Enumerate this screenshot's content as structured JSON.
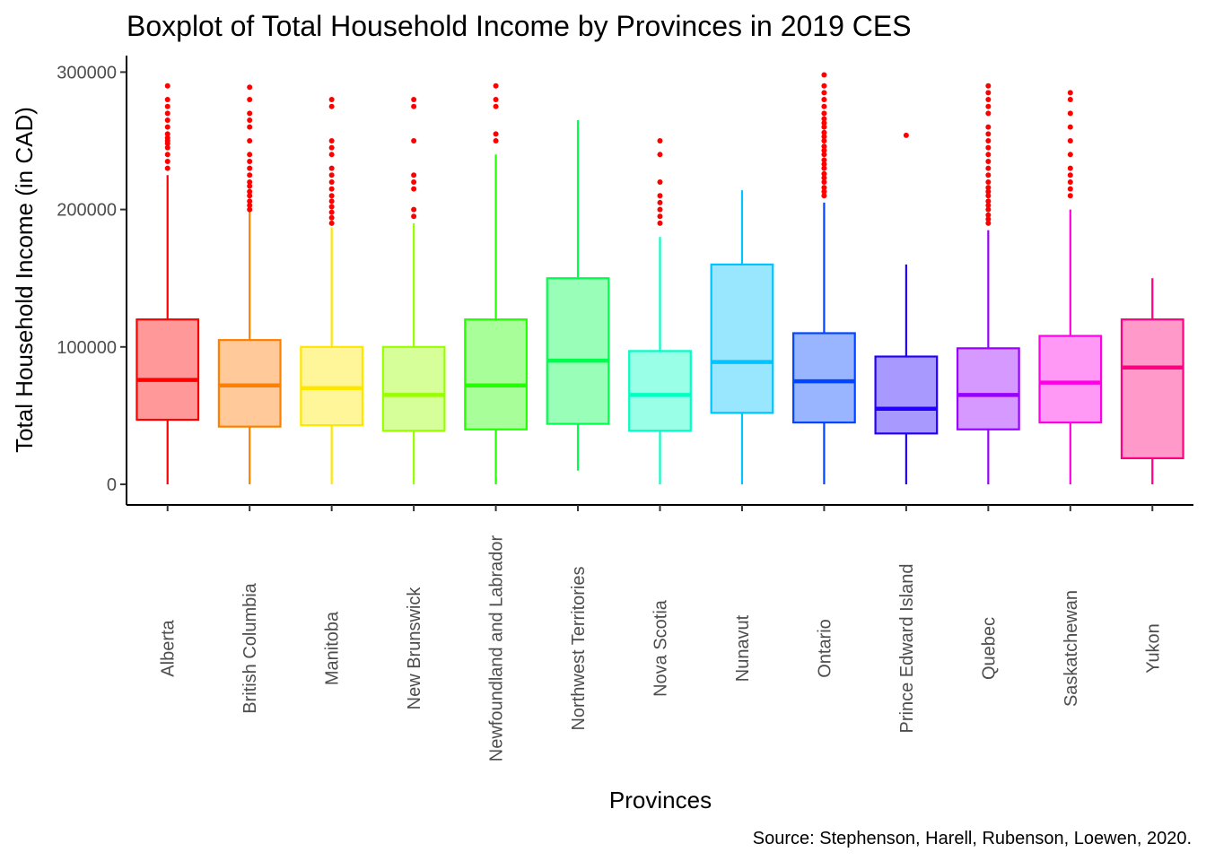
{
  "chart_data": {
    "type": "boxplot",
    "title": "Boxplot of Total Household Income by Provinces in 2019 CES",
    "xlabel": "Provinces",
    "ylabel": "Total Household Income (in CAD)",
    "caption": "Source: Stephenson, Harell, Rubenson, Loewen, 2020.",
    "ylim": [
      -15000,
      312000
    ],
    "y_ticks": [
      0,
      100000,
      200000,
      300000
    ],
    "y_tick_labels": [
      "0",
      "100000",
      "200000",
      "300000"
    ],
    "grid": false,
    "legend": "none",
    "categories": [
      "Alberta",
      "British Columbia",
      "Manitoba",
      "New Brunswick",
      "Newfoundland and Labrador",
      "Northwest Territories",
      "Nova Scotia",
      "Nunavut",
      "Ontario",
      "Prince Edward Island",
      "Quebec",
      "Saskatchewan",
      "Yukon"
    ],
    "boxes": [
      {
        "category": "Alberta",
        "color": "#ff0000",
        "fill": "#ff9999",
        "min": 0,
        "q1": 47000,
        "median": 76000,
        "q3": 120000,
        "max": 225000,
        "outliers": [
          230000,
          235000,
          240000,
          245000,
          248000,
          250000,
          252000,
          255000,
          260000,
          265000,
          270000,
          275000,
          280000,
          290000
        ]
      },
      {
        "category": "British Columbia",
        "color": "#ff8000",
        "fill": "#ffc999",
        "min": 0,
        "q1": 42000,
        "median": 72000,
        "q3": 105000,
        "max": 199000,
        "outliers": [
          200000,
          203000,
          206000,
          210000,
          213000,
          217000,
          220000,
          225000,
          230000,
          235000,
          240000,
          250000,
          260000,
          265000,
          270000,
          280000,
          289000
        ]
      },
      {
        "category": "Manitoba",
        "color": "#ffe600",
        "fill": "#fff599",
        "min": 0,
        "q1": 43000,
        "median": 70000,
        "q3": 100000,
        "max": 187000,
        "outliers": [
          190000,
          194000,
          198000,
          202000,
          206000,
          210000,
          215000,
          220000,
          225000,
          230000,
          240000,
          245000,
          250000,
          275000,
          280000
        ]
      },
      {
        "category": "New Brunswick",
        "color": "#99ff00",
        "fill": "#d6ff99",
        "min": 0,
        "q1": 39000,
        "median": 65000,
        "q3": 100000,
        "max": 190000,
        "outliers": [
          195000,
          200000,
          215000,
          220000,
          225000,
          250000,
          275000,
          280000
        ]
      },
      {
        "category": "Newfoundland and Labrador",
        "color": "#22ff00",
        "fill": "#a8ff99",
        "min": 0,
        "q1": 40000,
        "median": 72000,
        "q3": 120000,
        "max": 240000,
        "outliers": [
          250000,
          255000,
          275000,
          280000,
          290000
        ]
      },
      {
        "category": "Northwest Territories",
        "color": "#00ff4d",
        "fill": "#99ffb8",
        "min": 10000,
        "q1": 44000,
        "median": 90000,
        "q3": 150000,
        "max": 265000,
        "outliers": []
      },
      {
        "category": "Nova Scotia",
        "color": "#00ffc4",
        "fill": "#99ffe7",
        "min": 0,
        "q1": 39000,
        "median": 65000,
        "q3": 97000,
        "max": 180000,
        "outliers": [
          190000,
          195000,
          200000,
          205000,
          210000,
          220000,
          240000,
          250000
        ]
      },
      {
        "category": "Nunavut",
        "color": "#00c4ff",
        "fill": "#99e7ff",
        "min": 0,
        "q1": 52000,
        "median": 89000,
        "q3": 160000,
        "max": 214000,
        "outliers": []
      },
      {
        "category": "Ontario",
        "color": "#0045ff",
        "fill": "#99b5ff",
        "min": 0,
        "q1": 45000,
        "median": 75000,
        "q3": 110000,
        "max": 205000,
        "outliers": [
          210000,
          213000,
          216000,
          220000,
          223000,
          226000,
          230000,
          233000,
          236000,
          240000,
          243000,
          246000,
          250000,
          253000,
          256000,
          260000,
          263000,
          266000,
          270000,
          275000,
          280000,
          285000,
          290000,
          298000
        ]
      },
      {
        "category": "Prince Edward Island",
        "color": "#2200ff",
        "fill": "#a899ff",
        "min": 0,
        "q1": 37000,
        "median": 55000,
        "q3": 93000,
        "max": 160000,
        "outliers": [
          254000
        ]
      },
      {
        "category": "Quebec",
        "color": "#9900ff",
        "fill": "#d699ff",
        "min": 0,
        "q1": 40000,
        "median": 65000,
        "q3": 99000,
        "max": 185000,
        "outliers": [
          190000,
          193000,
          196000,
          200000,
          203000,
          206000,
          210000,
          213000,
          216000,
          220000,
          225000,
          230000,
          235000,
          240000,
          245000,
          250000,
          255000,
          260000,
          270000,
          275000,
          280000,
          285000,
          290000
        ]
      },
      {
        "category": "Saskatchewan",
        "color": "#ff00e6",
        "fill": "#ff99f5",
        "min": 0,
        "q1": 45000,
        "median": 74000,
        "q3": 108000,
        "max": 200000,
        "outliers": [
          210000,
          215000,
          220000,
          225000,
          230000,
          240000,
          250000,
          260000,
          270000,
          280000,
          285000
        ]
      },
      {
        "category": "Yukon",
        "color": "#ff0080",
        "fill": "#ff99c9",
        "min": 0,
        "q1": 19000,
        "median": 85000,
        "q3": 120000,
        "max": 150000,
        "outliers": []
      }
    ],
    "outlier_color": "#ff0000"
  }
}
